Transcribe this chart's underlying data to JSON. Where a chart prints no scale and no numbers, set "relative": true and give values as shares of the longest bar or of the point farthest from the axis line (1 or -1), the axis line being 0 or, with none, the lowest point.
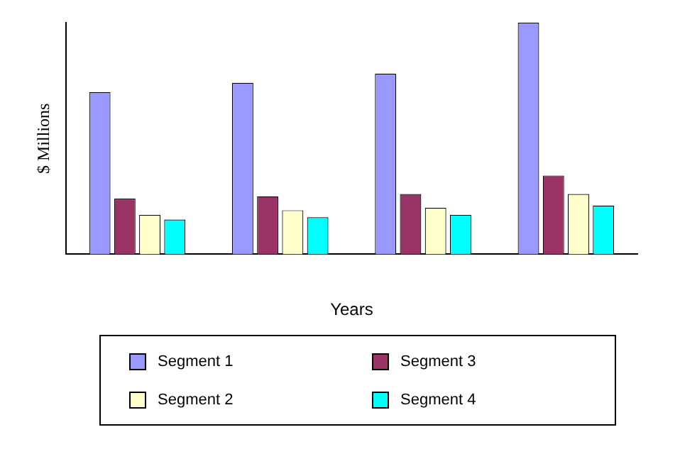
{
  "chart_data": {
    "type": "bar",
    "relative": true,
    "xlabel": "Years",
    "ylabel": "$ Millions",
    "categories": [
      null,
      null,
      null,
      null
    ],
    "series": [
      {
        "name": "Segment 1",
        "color": "#9999ff",
        "values": [
          0.7,
          0.74,
          0.78,
          1
        ]
      },
      {
        "name": "Segment 3",
        "color": "#993366",
        "values": [
          0.24,
          0.25,
          0.26,
          0.34
        ]
      },
      {
        "name": "Segment 2",
        "color": "#ffffcc",
        "values": [
          0.17,
          0.19,
          0.2,
          0.26
        ]
      },
      {
        "name": "Segment 4",
        "color": "#00ffff",
        "values": [
          0.15,
          0.16,
          0.17,
          0.21
        ]
      }
    ],
    "legend": "bottom"
  }
}
